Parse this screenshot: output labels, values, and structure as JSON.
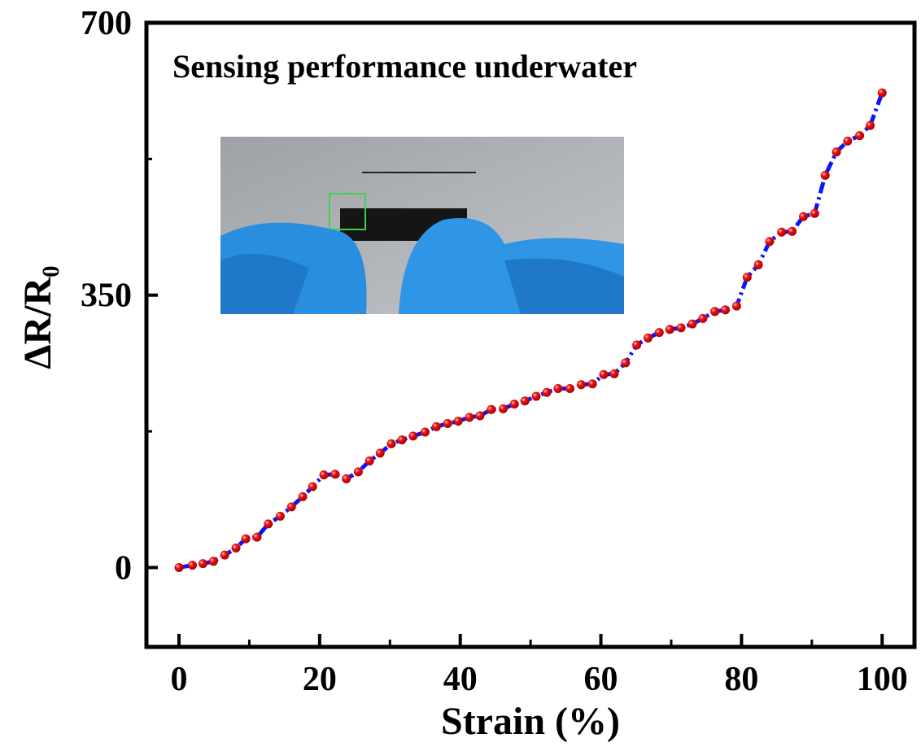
{
  "chart_data": {
    "type": "line",
    "annotation": "Sensing performance underwater",
    "xlabel": "Strain (%)",
    "ylabel": "ΔR/R₀",
    "xlim": [
      -4.86,
      104.6
    ],
    "ylim": [
      -102,
      700
    ],
    "xticks": [
      0,
      20,
      40,
      60,
      80,
      100
    ],
    "xminorticks": [
      10,
      30,
      50,
      70,
      90
    ],
    "yticks": [
      0,
      350,
      700
    ],
    "yminorticks": [
      175,
      525
    ],
    "series": [
      {
        "line_color": "#0a14ff",
        "marker_color": "#ee1111",
        "x": [
          0,
          1.9,
          3.4,
          4.9,
          6.5,
          8.1,
          9.5,
          11.1,
          12.7,
          14.4,
          16.0,
          17.6,
          19.0,
          20.6,
          22.2,
          23.8,
          25.5,
          27.1,
          28.6,
          30.2,
          31.7,
          33.3,
          35.0,
          36.6,
          38.2,
          39.7,
          41.3,
          42.8,
          44.4,
          46.1,
          47.7,
          49.2,
          50.8,
          52.3,
          53.9,
          55.6,
          57.2,
          58.8,
          60.4,
          61.9,
          63.5,
          65.1,
          66.7,
          68.3,
          69.8,
          71.4,
          73.0,
          74.5,
          76.2,
          77.7,
          79.3,
          80.8,
          82.4,
          84.0,
          85.7,
          87.2,
          88.8,
          90.4,
          91.9,
          93.5,
          95.1,
          96.8,
          98.3,
          100
        ],
        "values": [
          0,
          3,
          5,
          8,
          16,
          25,
          37,
          39,
          56,
          66,
          78,
          91,
          104,
          119,
          120,
          114,
          123,
          137,
          147,
          159,
          164,
          169,
          174,
          181,
          185,
          188,
          193,
          195,
          203,
          204,
          210,
          214,
          220,
          225,
          230,
          230,
          235,
          236,
          248,
          249,
          263,
          286,
          295,
          302,
          306,
          308,
          313,
          320,
          329,
          331,
          336,
          373,
          389,
          419,
          431,
          432,
          451,
          455,
          504,
          534,
          548,
          555,
          568,
          610
        ]
      }
    ]
  }
}
